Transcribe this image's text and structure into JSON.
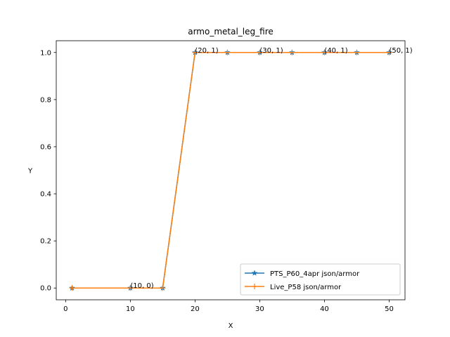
{
  "chart_data": {
    "type": "line",
    "title": "armo_metal_leg_fire",
    "xlabel": "X",
    "ylabel": "Y",
    "xlim": [
      -1.45,
      52.45
    ],
    "ylim": [
      -0.05,
      1.05
    ],
    "xticks": [
      0,
      10,
      20,
      30,
      40,
      50
    ],
    "yticks": [
      0.0,
      0.2,
      0.4,
      0.6,
      0.8,
      1.0
    ],
    "xtick_labels": [
      "0",
      "10",
      "20",
      "30",
      "40",
      "50"
    ],
    "ytick_labels": [
      "0.0",
      "0.2",
      "0.4",
      "0.6",
      "0.8",
      "1.0"
    ],
    "grid": false,
    "legend_position": "lower-right",
    "series": [
      {
        "name": "PTS_P60_4apr json/armor",
        "color": "#1f77b4",
        "marker": "star",
        "x": [
          1,
          10,
          15,
          20,
          25,
          30,
          35,
          40,
          45,
          50
        ],
        "y": [
          0,
          0,
          0,
          1,
          1,
          1,
          1,
          1,
          1,
          1
        ]
      },
      {
        "name": "Live_P58 json/armor",
        "color": "#ff7f0e",
        "marker": "plus",
        "x": [
          1,
          10,
          15,
          20,
          25,
          30,
          35,
          40,
          45,
          50
        ],
        "y": [
          0,
          0,
          0,
          1,
          1,
          1,
          1,
          1,
          1,
          1
        ]
      }
    ],
    "annotations": [
      {
        "text": "(10, 0)",
        "x": 10,
        "y": 0
      },
      {
        "text": "(20, 1)",
        "x": 20,
        "y": 1
      },
      {
        "text": "(30, 1)",
        "x": 30,
        "y": 1
      },
      {
        "text": "(40, 1)",
        "x": 40,
        "y": 1
      },
      {
        "text": "(50, 1)",
        "x": 50,
        "y": 1
      }
    ]
  }
}
